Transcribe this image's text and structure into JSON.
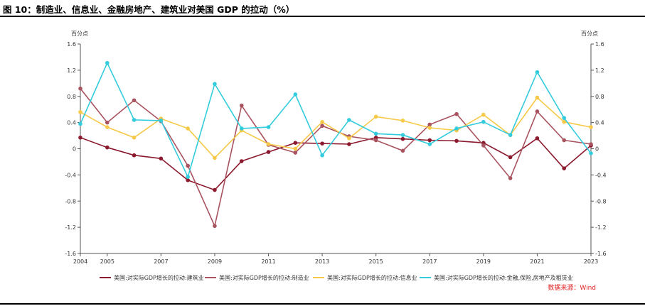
{
  "header": {
    "title": "图 10：制造业、信息业、金融房地产、建筑业对美国 GDP 的拉动（%）"
  },
  "source": "数据来源：Wind",
  "colors": {
    "construction": "#8b1a2e",
    "manufacturing": "#a8535f",
    "information": "#f7c948",
    "finance": "#33ccdd",
    "axis": "#555555",
    "source": "#e02020"
  },
  "chart_data": {
    "type": "line",
    "title": "",
    "xlabel": "",
    "ylabel_left": "百分点",
    "ylabel_right": "百分点",
    "ylim": [
      -1.6,
      1.6
    ],
    "yticks": [
      "1.6",
      "1.2",
      "0.8",
      "0.4",
      "0",
      "-0.4",
      "-0.8",
      "-1.2",
      "-1.6"
    ],
    "ytick_values": [
      1.6,
      1.2,
      0.8,
      0.4,
      0,
      -0.4,
      -0.8,
      -1.2,
      -1.6
    ],
    "xlim": [
      2004,
      2023
    ],
    "xticks": [
      "2004",
      "2005",
      "2007",
      "2009",
      "2011",
      "2013",
      "2015",
      "2017",
      "2019",
      "2021",
      "2023"
    ],
    "xtick_values": [
      2004,
      2005,
      2007,
      2009,
      2011,
      2013,
      2015,
      2017,
      2019,
      2021,
      2023
    ],
    "x": [
      2004,
      2005,
      2006,
      2007,
      2008,
      2009,
      2010,
      2011,
      2012,
      2013,
      2014,
      2015,
      2016,
      2017,
      2018,
      2019,
      2020,
      2021,
      2022,
      2023
    ],
    "series": [
      {
        "key": "construction",
        "name": "美国:对实际GDP增长的拉动:建筑业",
        "values": [
          0.17,
          0.02,
          -0.1,
          -0.15,
          -0.48,
          -0.63,
          -0.19,
          -0.05,
          0.09,
          0.08,
          0.07,
          0.17,
          0.15,
          0.13,
          0.12,
          0.09,
          -0.13,
          0.16,
          -0.3,
          0.05
        ]
      },
      {
        "key": "manufacturing",
        "name": "美国:对实际GDP增长的拉动:制造业",
        "values": [
          0.92,
          0.4,
          0.74,
          0.42,
          -0.26,
          -1.18,
          0.66,
          0.06,
          -0.06,
          0.35,
          0.19,
          0.13,
          -0.03,
          0.37,
          0.53,
          0.05,
          -0.45,
          0.57,
          0.13,
          0.07
        ]
      },
      {
        "key": "information",
        "name": "美国:对实际GDP增长的拉动:信息业",
        "values": [
          0.56,
          0.33,
          0.17,
          0.46,
          0.31,
          -0.14,
          0.28,
          0.07,
          0.0,
          0.41,
          0.16,
          0.49,
          0.43,
          0.32,
          0.28,
          0.52,
          0.21,
          0.78,
          0.41,
          0.33
        ]
      },
      {
        "key": "finance",
        "name": "美国:对实际GDP增长的拉动:金融,保险,房地产及租赁业",
        "values": [
          0.38,
          1.31,
          0.44,
          0.43,
          -0.43,
          0.99,
          0.31,
          0.33,
          0.83,
          -0.1,
          0.44,
          0.23,
          0.21,
          0.07,
          0.31,
          0.41,
          0.21,
          1.17,
          0.47,
          -0.07
        ]
      }
    ],
    "legend_position": "bottom-center",
    "grid": false
  }
}
